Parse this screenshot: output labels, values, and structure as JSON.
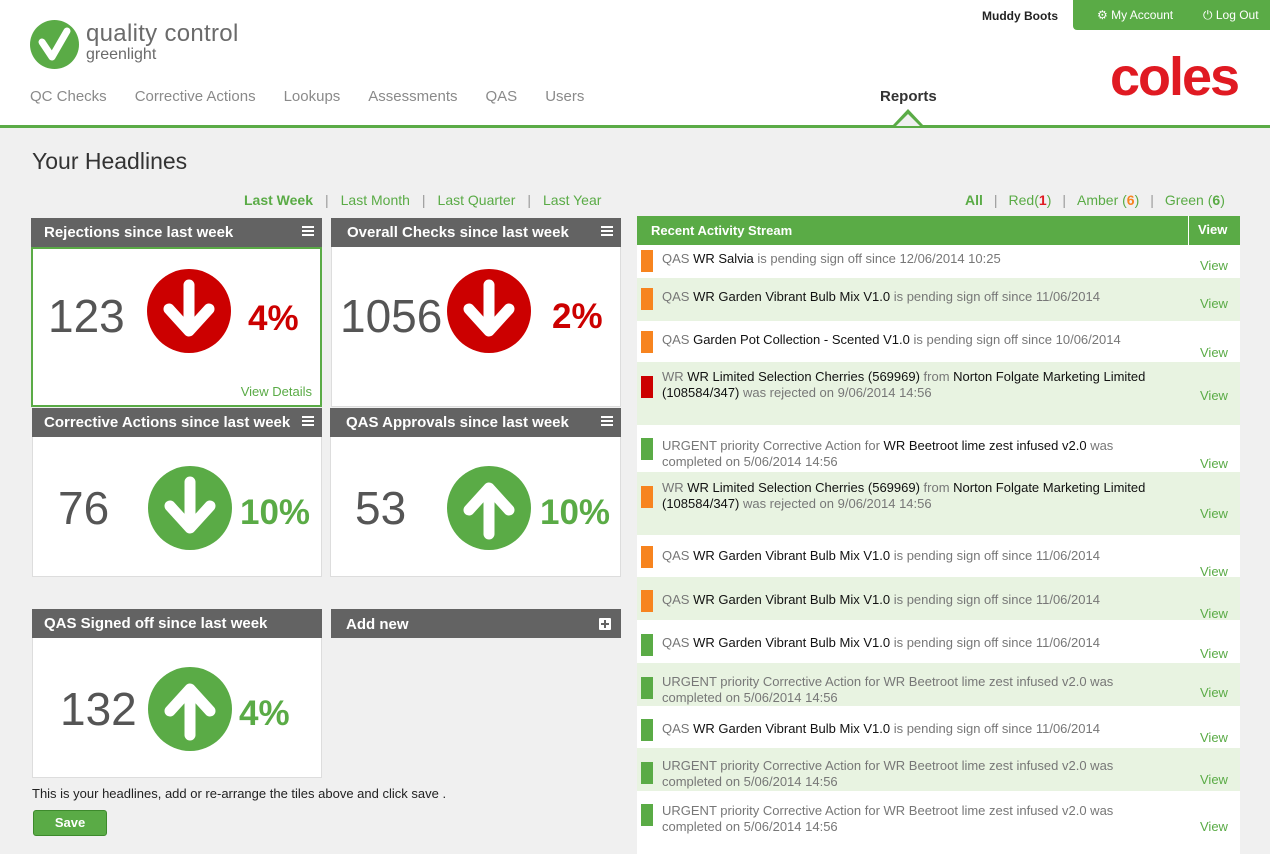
{
  "brand": {
    "line1": "quality control",
    "line2": "greenlight",
    "partner": "coles"
  },
  "nav": {
    "items": [
      "QC Checks",
      "Corrective Actions",
      "Lookups",
      "Assessments",
      "QAS",
      "Users"
    ],
    "active": "Reports"
  },
  "account": {
    "user": "Muddy Boots",
    "my_account": "My Account",
    "log_out": "Log Out"
  },
  "page_title": "Your Headlines",
  "periods": {
    "last_week": "Last Week",
    "last_month": "Last Month",
    "last_quarter": "Last Quarter",
    "last_year": "Last Year",
    "separator": "|"
  },
  "tiles": [
    {
      "title": "Rejections since last week",
      "value": "123",
      "percent": "4%",
      "direction": "down",
      "color": "#cc0000",
      "link": "View Details"
    },
    {
      "title": "Overall Checks since last week",
      "value": "1056",
      "percent": "2%",
      "direction": "down",
      "color": "#cc0000"
    },
    {
      "title": "Corrective Actions since last week",
      "value": "76",
      "percent": "10%",
      "direction": "down",
      "color": "#5aab46"
    },
    {
      "title": "QAS Approvals since last week",
      "value": "53",
      "percent": "10%",
      "direction": "up",
      "color": "#5aab46"
    },
    {
      "title": "QAS Signed off since last week",
      "value": "132",
      "percent": "4%",
      "direction": "up",
      "color": "#5aab46"
    }
  ],
  "add_new": "Add new",
  "hint": "This is your headlines, add or re-arrange the tiles above and click save .",
  "save": "Save",
  "status_filter": {
    "all": "All",
    "red": "Red",
    "red_open": "(",
    "red_count": "1",
    "red_close": ")",
    "amber": "Amber",
    "amber_open": " (",
    "amber_count": "6",
    "amber_close": ")",
    "green": "Green",
    "green_open": " (",
    "green_count": "6",
    "green_close": ")",
    "separator": "|"
  },
  "activity": {
    "title": "Recent Activity Stream",
    "view_col": "View",
    "rows": [
      {
        "status": "amber",
        "parts": [
          [
            "QAS ",
            false
          ],
          [
            "WR Salvia",
            true
          ],
          [
            " is pending sign off since 12/06/2014 10:25",
            false
          ]
        ],
        "view": "View"
      },
      {
        "status": "amber",
        "parts": [
          [
            "QAS ",
            false
          ],
          [
            "WR Garden Vibrant Bulb Mix V1.0",
            true
          ],
          [
            " is pending sign off since 11/06/2014",
            false
          ]
        ],
        "view": "View"
      },
      {
        "status": "amber",
        "parts": [
          [
            "QAS ",
            false
          ],
          [
            "Garden Pot Collection - Scented V1.0",
            true
          ],
          [
            " is pending sign off since 10/06/2014",
            false
          ]
        ],
        "view": "View"
      },
      {
        "status": "red",
        "parts": [
          [
            "WR ",
            false
          ],
          [
            "WR Limited Selection Cherries (569969)",
            true
          ],
          [
            " from ",
            false
          ],
          [
            "Norton Folgate Marketing Limited (108584/347)",
            true
          ],
          [
            " was rejected on 9/06/2014 14:56",
            false
          ]
        ],
        "view": "View"
      },
      {
        "status": "green",
        "parts": [
          [
            "URGENT priority Corrective Action for ",
            false
          ],
          [
            "WR Beetroot lime zest infused v2.0",
            true
          ],
          [
            " was completed on ",
            false
          ],
          [
            "5/06/2014 14:56",
            false
          ]
        ],
        "view": "View"
      },
      {
        "status": "amber",
        "parts": [
          [
            "WR ",
            false
          ],
          [
            "WR Limited Selection Cherries (569969)",
            true
          ],
          [
            " from ",
            false
          ],
          [
            "Norton Folgate Marketing Limited (108584/347)",
            true
          ],
          [
            " was rejected on 9/06/2014 14:56",
            false
          ]
        ],
        "view": "View"
      },
      {
        "status": "amber",
        "parts": [
          [
            "QAS ",
            false
          ],
          [
            "WR Garden Vibrant Bulb Mix V1.0",
            true
          ],
          [
            " is pending sign off since 11/06/2014",
            false
          ]
        ],
        "view": "View"
      },
      {
        "status": "amber",
        "parts": [
          [
            "QAS ",
            false
          ],
          [
            "WR Garden Vibrant Bulb Mix V1.0",
            true
          ],
          [
            " is pending sign off since 11/06/2014",
            false
          ]
        ],
        "view": "View"
      },
      {
        "status": "green",
        "parts": [
          [
            "QAS ",
            false
          ],
          [
            "WR Garden Vibrant Bulb Mix V1.0",
            true
          ],
          [
            " is pending sign off since 11/06/2014",
            false
          ]
        ],
        "view": "View"
      },
      {
        "status": "green",
        "parts": [
          [
            "URGENT priority Corrective Action for WR Beetroot lime zest infused v2.0 was completed on ",
            false
          ],
          [
            "5/06/2014 14:56",
            false
          ]
        ],
        "view": "View"
      },
      {
        "status": "green",
        "parts": [
          [
            "QAS ",
            false
          ],
          [
            "WR Garden Vibrant Bulb Mix V1.0",
            true
          ],
          [
            " is pending sign off since 11/06/2014",
            false
          ]
        ],
        "view": "View"
      },
      {
        "status": "green",
        "parts": [
          [
            "URGENT priority Corrective Action for WR Beetroot lime zest infused v2.0 was completed on ",
            false
          ],
          [
            "5/06/2014 14:56",
            false
          ]
        ],
        "view": "View"
      },
      {
        "status": "green",
        "parts": [
          [
            "URGENT priority Corrective Action for WR Beetroot lime zest infused v2.0 was completed on ",
            false
          ],
          [
            "5/06/2014 14:56",
            false
          ]
        ],
        "view": "View"
      }
    ]
  },
  "colors": {
    "green": "#5aab46",
    "red": "#cc0000",
    "amber": "#f7841f",
    "coles_red": "#e01a22",
    "tile_header": "#636363"
  }
}
